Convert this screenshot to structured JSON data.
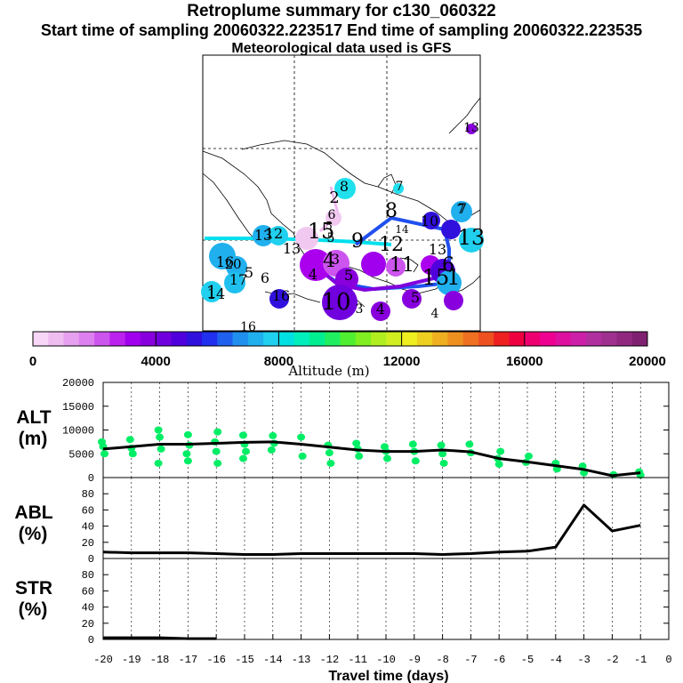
{
  "header": {
    "title": "Retroplume summary for c130_060322",
    "sampling_line": "Start time of sampling 20060322.223517     End time of sampling 20060322.223535",
    "met_line": "Meteorological data used is GFS"
  },
  "colorbar": {
    "ticks": [
      "0",
      "4000",
      "8000",
      "12000",
      "16000",
      "20000"
    ],
    "label": "Altitude (m)",
    "colors": [
      "#f7d6f7",
      "#efbdef",
      "#e6a0ef",
      "#dd80ef",
      "#cc55ee",
      "#bb22ee",
      "#a000ee",
      "#8800dd",
      "#7000dd",
      "#5000dd",
      "#3010dd",
      "#2030ee",
      "#2060ee",
      "#2090ee",
      "#20b0ee",
      "#20d0ee",
      "#00e0e0",
      "#00eebb",
      "#00ee90",
      "#20ee60",
      "#50ee30",
      "#80ee20",
      "#b0ee20",
      "#d0ee20",
      "#eeee20",
      "#eed020",
      "#eeb020",
      "#ee9020",
      "#ee7020",
      "#ee5020",
      "#ee2020",
      "#ee0040",
      "#ee0070",
      "#ee0090",
      "#dd10a0",
      "#cc20a8",
      "#b030a0",
      "#a03090",
      "#902880",
      "#802070"
    ]
  },
  "map": {
    "labels": [
      "13",
      "8",
      "2",
      "7",
      "6",
      "5",
      "8",
      "14",
      "10",
      "7",
      "13",
      "13",
      "13",
      "9",
      "12",
      "20",
      "13",
      "5",
      "15",
      "3",
      "12",
      "4",
      "16",
      "11",
      "15",
      "6",
      "7",
      "1",
      "14",
      "17",
      "5",
      "6",
      "16",
      "10",
      "5",
      "4",
      "1",
      "3",
      "4",
      "5",
      "4",
      "16"
    ]
  },
  "chart_data": [
    {
      "type": "line",
      "panel": "ALT",
      "title": "",
      "ylabel": "ALT\n(m)",
      "ylabel_lines": [
        "ALT",
        "(m)"
      ],
      "x": [
        -20,
        -19,
        -18,
        -17,
        -16,
        -15,
        -14,
        -13,
        -12,
        -11,
        -10,
        -9,
        -8,
        -7,
        -6,
        -5,
        -4,
        -3,
        -2,
        -1
      ],
      "values": [
        6000,
        6500,
        7000,
        7000,
        7200,
        7400,
        7500,
        7000,
        6400,
        5800,
        5500,
        5500,
        5800,
        5400,
        4000,
        3300,
        2500,
        1700,
        400,
        1000
      ],
      "scatter": {
        "x": [
          -20,
          -20,
          -20,
          -19,
          -19,
          -19,
          -18,
          -18,
          -18,
          -18,
          -17,
          -17,
          -17,
          -17,
          -16,
          -16,
          -16,
          -16,
          -15,
          -15,
          -15,
          -15,
          -14,
          -14,
          -14,
          -13,
          -13,
          -12,
          -12,
          -12,
          -11,
          -11,
          -11,
          -10,
          -10,
          -10,
          -9,
          -9,
          -9,
          -8,
          -8,
          -8,
          -7,
          -7,
          -6,
          -6,
          -6,
          -5,
          -5,
          -4,
          -4,
          -3,
          -3,
          -2,
          -1,
          -1
        ],
        "y": [
          7500,
          6500,
          5000,
          8000,
          6200,
          5000,
          10000,
          8500,
          6000,
          3000,
          9000,
          6800,
          5000,
          3500,
          9600,
          7500,
          5500,
          3000,
          8900,
          7000,
          5500,
          4000,
          8800,
          7200,
          5800,
          8500,
          4500,
          6800,
          5200,
          3000,
          7200,
          6000,
          4500,
          6500,
          5500,
          4000,
          7000,
          5500,
          3500,
          6800,
          5000,
          3000,
          7000,
          5200,
          5500,
          4000,
          2800,
          4500,
          3200,
          3000,
          1800,
          2400,
          1000,
          600,
          1200,
          500
        ],
        "color": "#00ee66"
      },
      "ylim": [
        0,
        20000
      ],
      "yticks": [
        "20000",
        "15000",
        "10000",
        "5000",
        "0"
      ]
    },
    {
      "type": "line",
      "panel": "ABL",
      "ylabel": "ABL\n(%)",
      "ylabel_lines": [
        "ABL",
        "(%)"
      ],
      "x": [
        -20,
        -19,
        -18,
        -17,
        -16,
        -15,
        -14,
        -13,
        -12,
        -11,
        -10,
        -9,
        -8,
        -7,
        -6,
        -5,
        -4,
        -3,
        -2,
        -1
      ],
      "values": [
        8,
        7,
        7,
        7,
        6,
        5,
        5,
        6,
        6,
        6,
        6,
        6,
        5,
        6,
        8,
        9,
        14,
        66,
        34,
        41
      ],
      "ylim": [
        0,
        100
      ],
      "yticks": [
        "80",
        "60",
        "40",
        "20",
        "0"
      ]
    },
    {
      "type": "line",
      "panel": "STR",
      "ylabel": "STR\n(%)",
      "ylabel_lines": [
        "STR",
        "(%)"
      ],
      "x": [
        -20,
        -19,
        -18,
        -17,
        -16
      ],
      "values": [
        2,
        2,
        2,
        1,
        1
      ],
      "ylim": [
        0,
        100
      ],
      "yticks": [
        "80",
        "60",
        "40",
        "20",
        "0"
      ]
    }
  ],
  "xaxis": {
    "ticks": [
      "-20",
      "-19",
      "-18",
      "-17",
      "-16",
      "-15",
      "-14",
      "-13",
      "-12",
      "-11",
      "-10",
      "-9",
      "-8",
      "-7",
      "-6",
      "-5",
      "-4",
      "-3",
      "-2",
      "-1",
      "0"
    ],
    "label": "Travel time (days)"
  }
}
